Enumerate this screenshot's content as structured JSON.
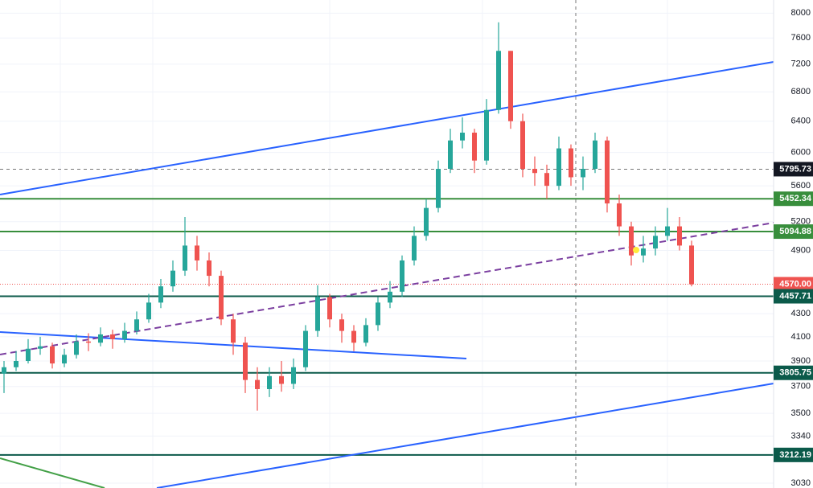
{
  "chart_data": {
    "type": "candlestick",
    "log_scale": true,
    "ylim": [
      3000,
      8220
    ],
    "yticks": [
      3030,
      3340,
      3500,
      3700,
      3900,
      4100,
      4300,
      4900,
      5200,
      5600,
      6000,
      6400,
      6800,
      7200,
      7600,
      8000
    ],
    "up_color": "#26a69a",
    "down_color": "#ef5350",
    "open": [
      3800,
      3850,
      3900,
      4000,
      4020,
      3880,
      3950,
      4060,
      4050,
      4120,
      4080,
      4150,
      4250,
      4400,
      4550,
      4700,
      4950,
      4800,
      4650,
      4250,
      4050,
      3750,
      3680,
      3780,
      3720,
      3850,
      4150,
      4450,
      4250,
      4150,
      4050,
      4200,
      4400,
      4500,
      4800,
      5050,
      5350,
      5800,
      6150,
      6250,
      5900,
      6550,
      7400,
      6400,
      5800,
      5750,
      5600,
      6050,
      5700,
      5800,
      6150,
      5400,
      5150,
      4850,
      4920,
      5050,
      5150,
      4950
    ],
    "high": [
      3900,
      3980,
      4080,
      4100,
      4050,
      4000,
      4120,
      4130,
      4180,
      4160,
      4220,
      4320,
      4480,
      4620,
      4800,
      5250,
      5050,
      4880,
      4700,
      4300,
      4100,
      3850,
      3850,
      3900,
      3920,
      4200,
      4560,
      4480,
      4300,
      4200,
      4260,
      4450,
      4600,
      4850,
      5150,
      5450,
      5900,
      6300,
      6450,
      6300,
      6700,
      7850,
      7400,
      6500,
      5950,
      5850,
      6200,
      6100,
      5950,
      6250,
      6200,
      5500,
      5200,
      5050,
      5150,
      5350,
      5250,
      5000
    ],
    "low": [
      3650,
      3820,
      3880,
      3950,
      3840,
      3850,
      3920,
      3980,
      4020,
      4000,
      4050,
      4120,
      4220,
      4350,
      4500,
      4650,
      4700,
      4550,
      4200,
      3950,
      3650,
      3520,
      3620,
      3660,
      3680,
      3820,
      4100,
      4180,
      4050,
      3980,
      4020,
      4150,
      4350,
      4450,
      4750,
      5000,
      5300,
      5750,
      6050,
      5750,
      5850,
      6500,
      6300,
      5700,
      5600,
      5450,
      5550,
      5600,
      5550,
      5750,
      5300,
      5050,
      4750,
      4780,
      4850,
      5000,
      4900,
      4550
    ],
    "close": [
      3850,
      3900,
      4000,
      4020,
      3880,
      3950,
      4060,
      4050,
      4120,
      4080,
      4150,
      4250,
      4400,
      4550,
      4700,
      4950,
      4800,
      4650,
      4250,
      4050,
      3750,
      3680,
      3780,
      3720,
      3850,
      4150,
      4450,
      4250,
      4150,
      4050,
      4200,
      4400,
      4500,
      4800,
      5050,
      5350,
      5800,
      6150,
      6250,
      5900,
      6550,
      7400,
      6400,
      5800,
      5750,
      5600,
      6050,
      5700,
      5800,
      6150,
      5400,
      5150,
      4850,
      4920,
      5050,
      5150,
      4950,
      4570
    ],
    "price_levels": [
      {
        "value": 5795.73,
        "color": "#131722",
        "line": "dashed"
      },
      {
        "value": 5452.34,
        "color": "#388e3c",
        "line": "solid"
      },
      {
        "value": 5094.88,
        "color": "#388e3c",
        "line": "solid"
      },
      {
        "value": 4570,
        "label": "4570.00",
        "color": "#ef5350",
        "line": "dotted"
      },
      {
        "value": 4457.71,
        "color": "#0b5a4a",
        "line": "solid"
      },
      {
        "value": 3805.75,
        "color": "#0b5a4a",
        "line": "solid"
      },
      {
        "value": 3212.19,
        "color": "#0b5a4a",
        "line": "solid"
      }
    ]
  }
}
